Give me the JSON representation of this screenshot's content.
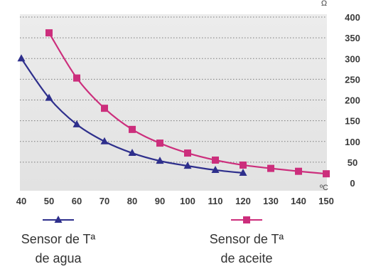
{
  "chart_data": {
    "type": "line",
    "title": "",
    "xlabel": "",
    "ylabel": "",
    "x_unit_label": "ºC",
    "y_unit_label": "Ω",
    "xlim": [
      40,
      150
    ],
    "ylim": [
      0,
      400
    ],
    "x_ticks": [
      40,
      50,
      60,
      70,
      80,
      90,
      100,
      110,
      120,
      130,
      140,
      150
    ],
    "y_ticks": [
      0,
      50,
      100,
      150,
      200,
      250,
      300,
      350,
      400
    ],
    "y_axis_side": "right",
    "grid": "horizontal dotted",
    "legend_position": "bottom",
    "series": [
      {
        "name": "Sensor de Tª de agua",
        "legend_lines": [
          "Sensor de Tª",
          "de agua"
        ],
        "color": "#2e2f8c",
        "marker": "triangle",
        "x": [
          40,
          50,
          60,
          70,
          80,
          90,
          100,
          110,
          120
        ],
        "y": [
          300,
          205,
          141,
          100,
          72,
          53,
          41,
          31,
          24
        ]
      },
      {
        "name": "Sensor de Tª de aceite",
        "legend_lines": [
          "Sensor de Tª",
          "de aceite"
        ],
        "color": "#cc2e7c",
        "marker": "square",
        "x": [
          50,
          60,
          70,
          80,
          90,
          100,
          110,
          120,
          130,
          140,
          150
        ],
        "y": [
          362,
          253,
          180,
          129,
          96,
          72,
          55,
          43,
          35,
          28,
          22
        ]
      }
    ]
  }
}
